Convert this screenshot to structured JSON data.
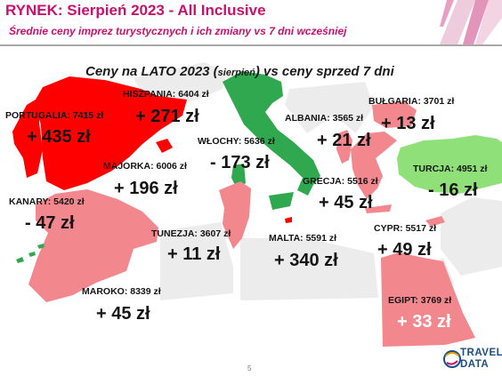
{
  "header": {
    "title": "RYNEK: Sierpień 2023 - All Inclusive",
    "subtitle": "Średnie ceny imprez turystycznych i ich zmiany vs 7 dni wcześniej"
  },
  "map": {
    "title_before": "Ceny na LATO 2023 (",
    "title_paren": "sierpień",
    "title_after": ") vs ceny sprzed 7 dni"
  },
  "destinations": {
    "portugalia": {
      "price": "PORTUGALIA: 7415 zł",
      "change": "+ 435 zł",
      "color": "#ff0000"
    },
    "hiszpania": {
      "price": "HISZPANIA: 6404 zł",
      "change": "+ 271 zł",
      "color": "#ff0000"
    },
    "majorka": {
      "price": "MAJORKA: 6006 zł",
      "change": "+ 196 zł",
      "color": "#ff0000"
    },
    "kanary": {
      "price": "KANARY: 5420 zł",
      "change": "- 47 zł",
      "color": "#2fa84f"
    },
    "wlochy": {
      "price": "WŁOCHY: 5636 zł",
      "change": "- 173 zł",
      "color": "#2fa84f"
    },
    "albania": {
      "price": "ALBANIA: 3565 zł",
      "change": "+ 21 zł",
      "color": "#f2878d"
    },
    "bulgaria": {
      "price": "BUŁGARIA: 3701 zł",
      "change": "+ 13 zł",
      "color": "#f2878d"
    },
    "turcja": {
      "price": "TURCJA: 4951 zł",
      "change": "- 16 zł",
      "color": "#90e07a"
    },
    "grecja": {
      "price": "GRECJA: 5516 zł",
      "change": "+ 45 zł",
      "color": "#f2878d"
    },
    "tunezja": {
      "price": "TUNEZJA: 3607 zł",
      "change": "+ 11 zł",
      "color": "#f2878d"
    },
    "malta": {
      "price": "MALTA: 5591 zł",
      "change": "+ 340 zł",
      "color": "#ff0000"
    },
    "cypr": {
      "price": "CYPR: 5517 zł",
      "change": "+ 49 zł",
      "color": "#f2878d"
    },
    "maroko": {
      "price": "MAROKO: 8339 zł",
      "change": "+ 45 zł",
      "color": "#f2878d"
    },
    "egipt": {
      "price": "EGIPT: 3769 zł",
      "change": "+ 33 zł",
      "color": "#f2878d"
    }
  },
  "footer": {
    "page_number": "5"
  },
  "logo": {
    "line1": "TRAVEL",
    "line2": "DATA"
  }
}
